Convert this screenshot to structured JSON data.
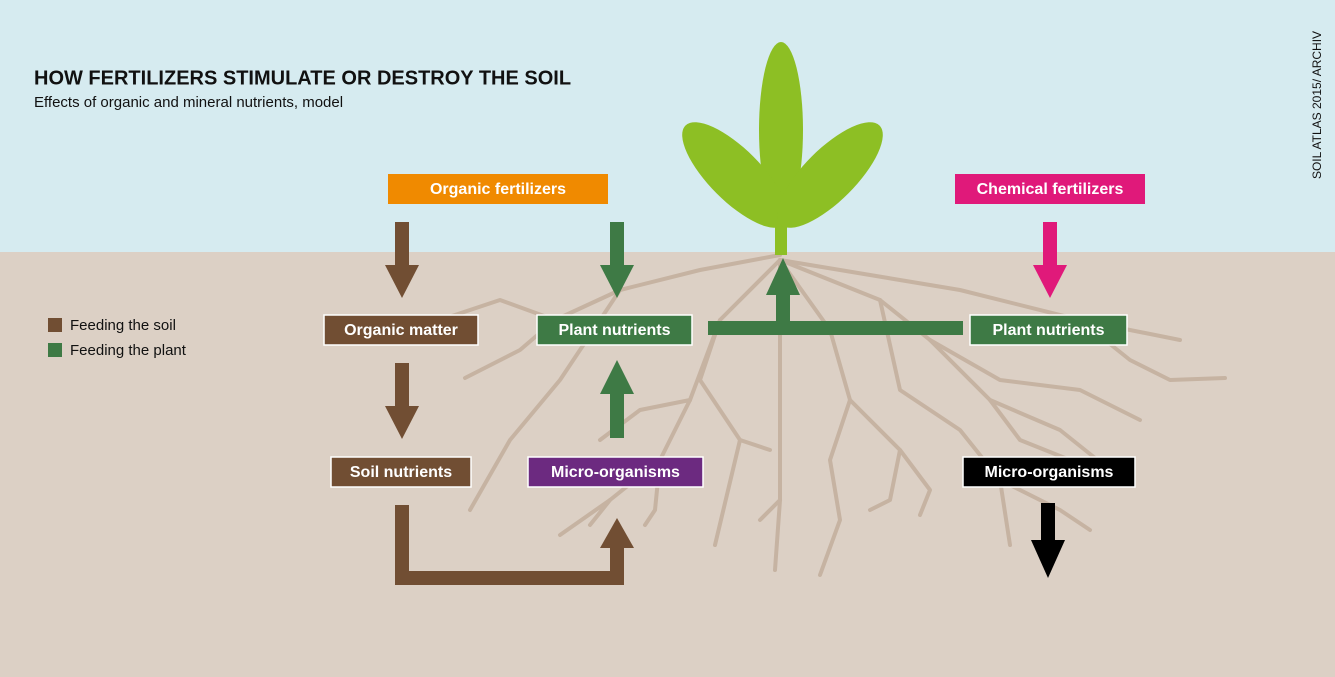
{
  "header": {
    "title": "HOW FERTILIZERS STIMULATE OR DESTROY THE SOIL",
    "subtitle": "Effects of organic and mineral nutrients, model",
    "credit": "SOIL ATLAS 2015/ ARCHIV"
  },
  "legend": [
    "Feeding the soil",
    "Feeding the plant"
  ],
  "nodes": [
    {
      "label": "Organic fertilizers"
    },
    {
      "label": "Chemical fertilizers"
    },
    {
      "label": "Organic matter"
    },
    {
      "label": "Plant nutrients"
    },
    {
      "label": "Plant nutrients"
    },
    {
      "label": "Soil nutrients"
    },
    {
      "label": "Micro-organisms"
    },
    {
      "label": "Micro-organisms"
    }
  ]
}
